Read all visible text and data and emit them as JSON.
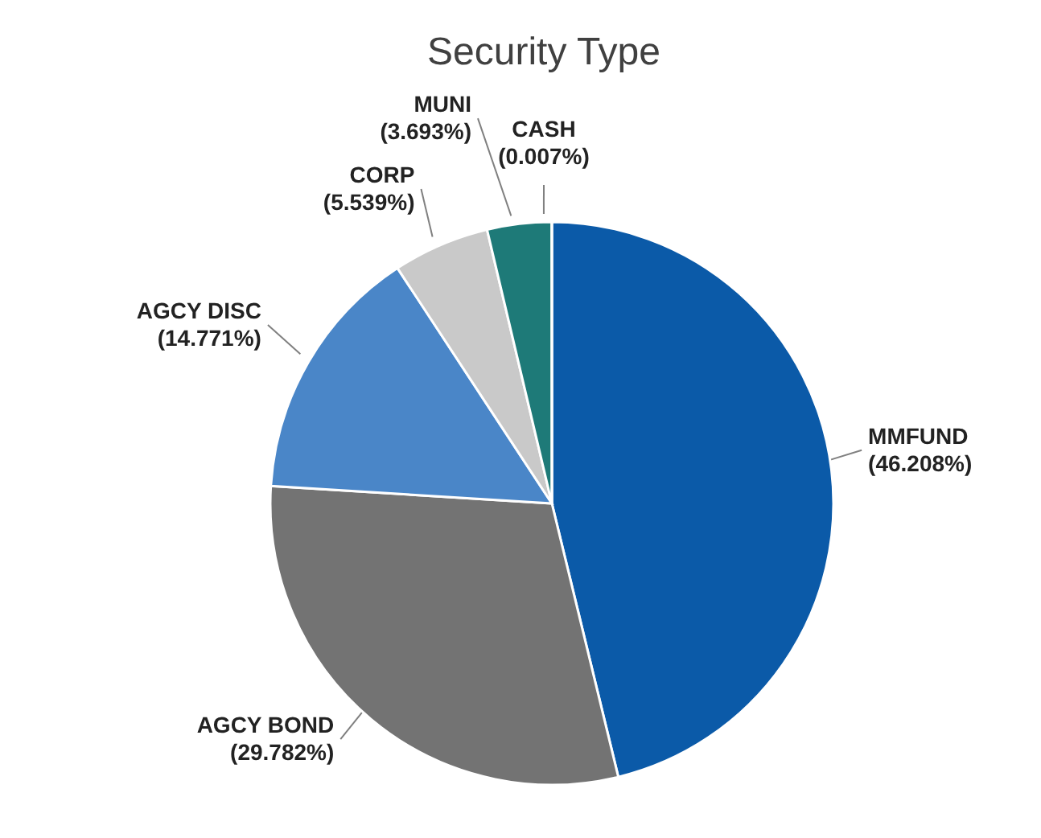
{
  "chart_data": {
    "type": "pie",
    "title": "Security Type",
    "categories": [
      "MMFUND",
      "AGCY BOND",
      "AGCY DISC",
      "CORP",
      "MUNI",
      "CASH"
    ],
    "values": [
      46.208,
      29.782,
      14.771,
      5.539,
      3.693,
      0.007
    ],
    "value_labels": [
      "(46.208%)",
      "(29.782%)",
      "(14.771%)",
      "(5.539%)",
      "(3.693%)",
      "(0.007%)"
    ],
    "colors": [
      "#0b5aa8",
      "#737373",
      "#4a86c8",
      "#c9c9c9",
      "#1e7a78",
      "#1e7a78"
    ],
    "legend": false
  }
}
